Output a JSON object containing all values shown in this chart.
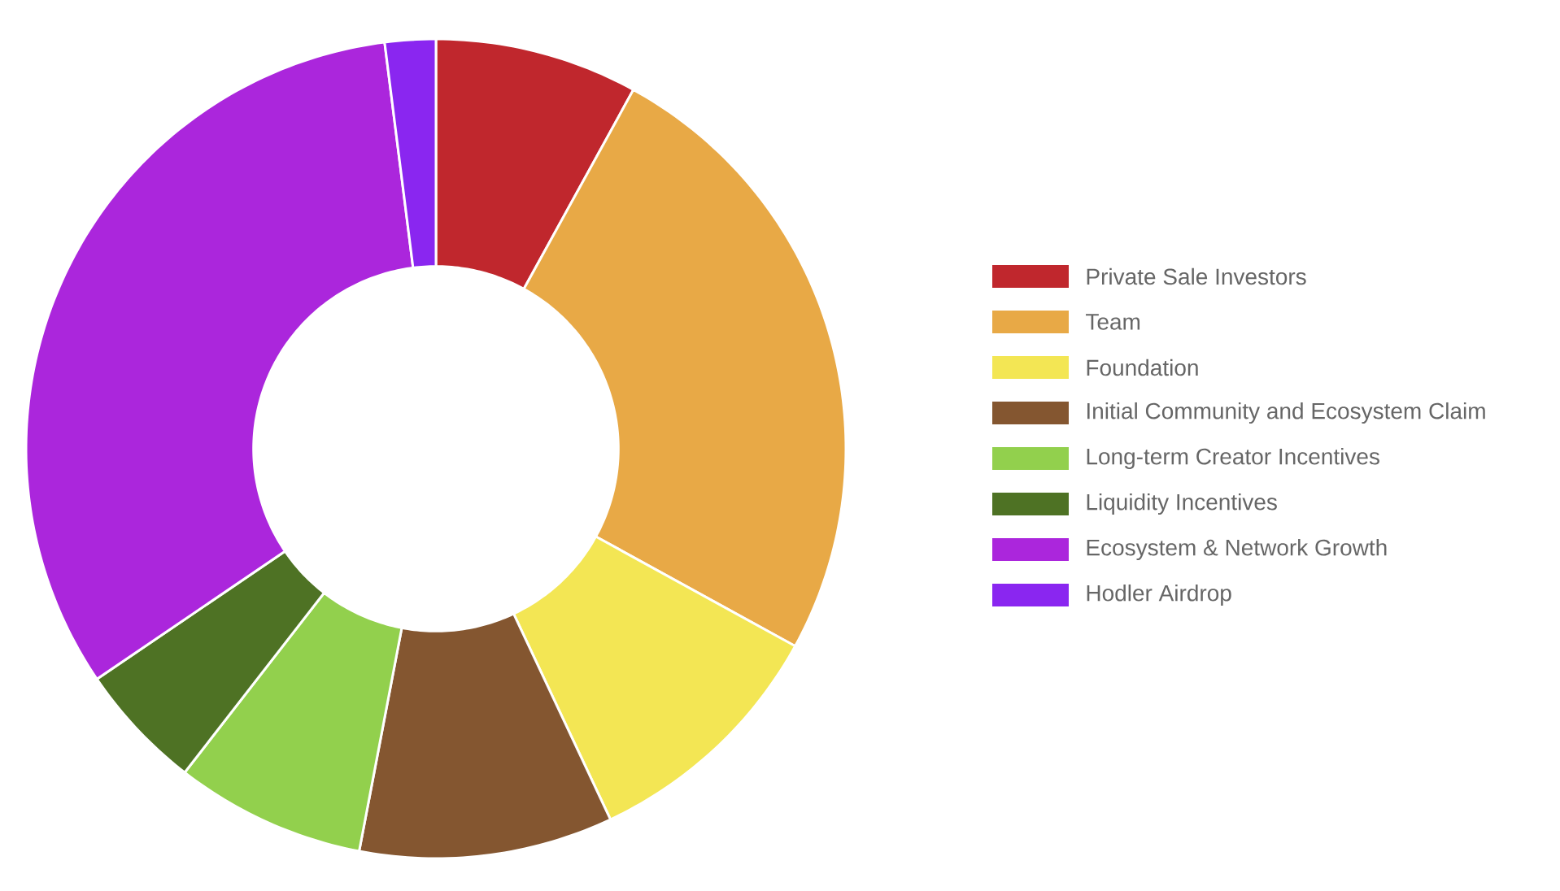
{
  "chart_data": {
    "type": "donut",
    "categories": [
      "Private Sale Investors",
      "Team",
      "Foundation",
      "Initial Community and Ecosystem Claim",
      "Long-term Creator Incentives",
      "Liquidity Incentives",
      "Ecosystem & Network Growth",
      "Hodler Airdrop"
    ],
    "values": [
      8,
      25,
      10,
      10,
      7.5,
      5,
      32.5,
      2
    ],
    "colors": [
      "#c0272d",
      "#e8a946",
      "#f3e654",
      "#845630",
      "#92d04d",
      "#4e7224",
      "#ab26dc",
      "#8a26f0"
    ],
    "legend": "right"
  }
}
